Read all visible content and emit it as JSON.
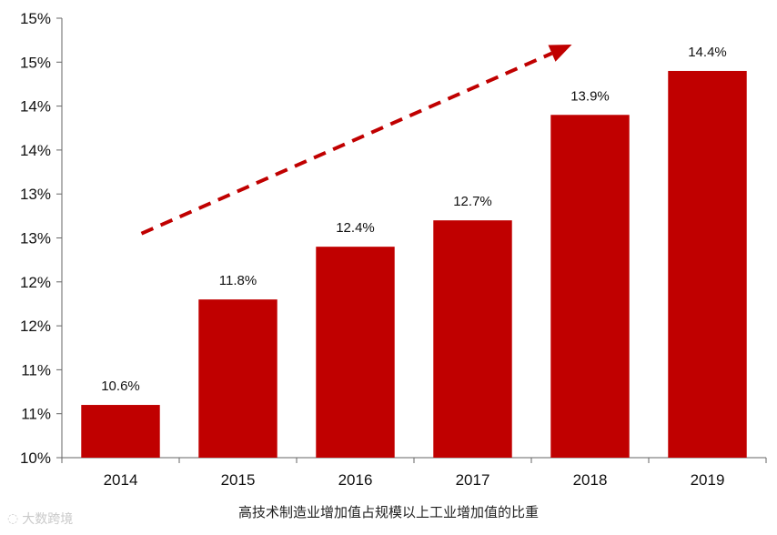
{
  "chart_data": {
    "type": "bar",
    "title": "",
    "xlabel": "高技术制造业增加值占规模以上工业增加值的比重",
    "ylabel": "",
    "categories": [
      "2014",
      "2015",
      "2016",
      "2017",
      "2018",
      "2019"
    ],
    "values": [
      10.6,
      11.8,
      12.4,
      12.7,
      13.9,
      14.4
    ],
    "data_labels": [
      "10.6%",
      "11.8%",
      "12.4%",
      "12.7%",
      "13.9%",
      "14.4%"
    ],
    "ylim": [
      10,
      15
    ],
    "y_tick_values": [
      10.0,
      10.5,
      11.0,
      11.5,
      12.0,
      12.5,
      13.0,
      13.5,
      14.0,
      14.5,
      15.0
    ],
    "y_tick_labels": [
      "10%",
      "11%",
      "11%",
      "12%",
      "12%",
      "13%",
      "13%",
      "14%",
      "14%",
      "15%",
      "15%"
    ],
    "grid": false,
    "legend": "none",
    "bar_color": "#c00000",
    "annotation": {
      "type": "dashed-trend-arrow",
      "color": "#c00000",
      "from_category": "2014",
      "to_category": "2018"
    }
  },
  "watermark": {
    "icon": "logo-mark-icon",
    "text": "大数跨境"
  }
}
